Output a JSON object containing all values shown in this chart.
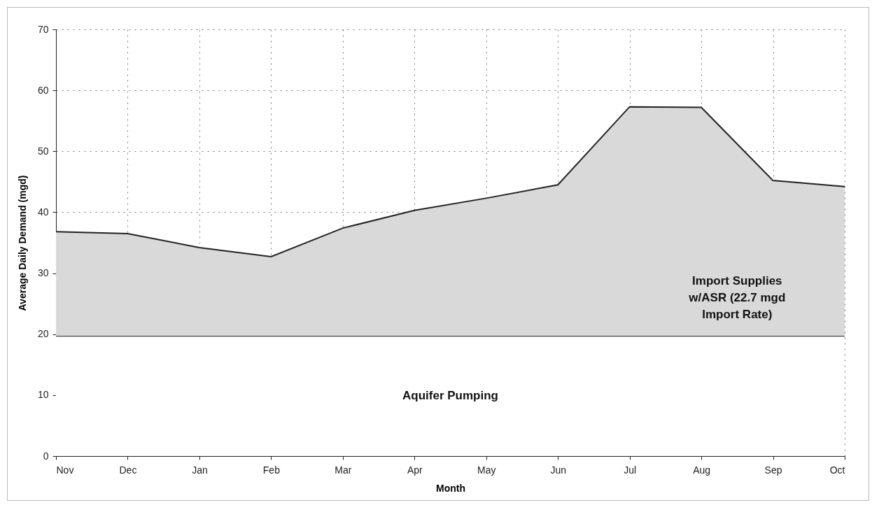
{
  "chart_data": {
    "type": "area",
    "stacked": true,
    "xlabel": "Month",
    "ylabel": "Average Daily Demand (mgd)",
    "categories": [
      "Nov",
      "Dec",
      "Jan",
      "Feb",
      "Mar",
      "Apr",
      "May",
      "Jun",
      "Jul",
      "Aug",
      "Sep",
      "Oct"
    ],
    "series": [
      {
        "name": "Aquifer Pumping",
        "color": "#ffffff",
        "values": [
          19.7,
          19.7,
          19.7,
          19.7,
          19.7,
          19.7,
          19.7,
          19.7,
          19.7,
          19.7,
          19.7,
          19.7
        ]
      },
      {
        "name": "Import Supplies w/ASR (22.7 mgd Import Rate)",
        "color": "#d9d9d9",
        "values": [
          17.1,
          16.8,
          14.5,
          13.0,
          17.7,
          20.6,
          22.6,
          24.8,
          37.6,
          37.5,
          25.5,
          24.5
        ]
      }
    ],
    "ylim": [
      0,
      70
    ],
    "yticks": [
      0,
      10,
      20,
      30,
      40,
      50,
      60,
      70
    ],
    "grid": true,
    "legend": false
  }
}
